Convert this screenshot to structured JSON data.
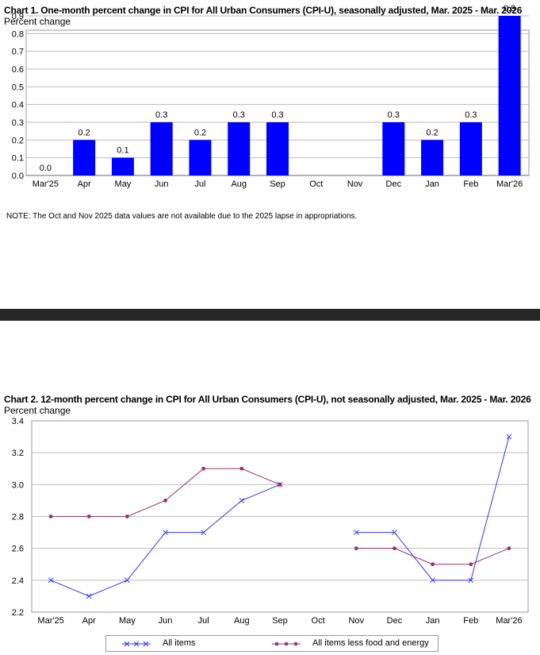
{
  "chart_data": [
    {
      "type": "bar",
      "title": "Chart 1. One-month percent change in CPI for All Urban Consumers (CPI-U), seasonally adjusted, Mar. 2025 - Mar. 2026",
      "ylabel": "Percent change",
      "categories": [
        "Mar'25",
        "Apr",
        "May",
        "Jun",
        "Jul",
        "Aug",
        "Sep",
        "Oct",
        "Nov",
        "Dec",
        "Jan",
        "Feb",
        "Mar'26"
      ],
      "values": [
        0.0,
        0.2,
        0.1,
        0.3,
        0.2,
        0.3,
        0.3,
        null,
        null,
        0.3,
        0.2,
        0.3,
        0.9
      ],
      "value_labels": [
        "0.0",
        "0.2",
        "0.1",
        "0.3",
        "0.2",
        "0.3",
        "0.3",
        null,
        null,
        "0.3",
        "0.2",
        "0.3",
        "0.9"
      ],
      "ylim": [
        0,
        0.9
      ],
      "yticks": [
        0.0,
        0.1,
        0.2,
        0.3,
        0.4,
        0.5,
        0.6,
        0.7,
        0.8,
        0.9
      ],
      "ytick_labels": [
        "0.0",
        "0.1",
        "0.2",
        "0.3",
        "0.4",
        "0.5",
        "0.6",
        "0.7",
        "0.8",
        "0.9"
      ],
      "grid": true,
      "bar_color": "#0000ff",
      "note": "NOTE: The Oct and Nov 2025 data values are not available due to the 2025 lapse in appropriations."
    },
    {
      "type": "line",
      "title": "Chart 2. 12-month percent change in CPI for All Urban Consumers (CPI-U), not seasonally adjusted, Mar. 2025 - Mar. 2026",
      "ylabel": "Percent change",
      "categories": [
        "Mar'25",
        "Apr",
        "May",
        "Jun",
        "Jul",
        "Aug",
        "Sep",
        "Oct",
        "Nov",
        "Dec",
        "Jan",
        "Feb",
        "Mar'26"
      ],
      "series": [
        {
          "name": "All items",
          "color": "#3333ff",
          "marker": "x",
          "values": [
            2.4,
            2.3,
            2.4,
            2.7,
            2.7,
            2.9,
            3.0,
            null,
            2.7,
            2.7,
            2.4,
            2.4,
            3.3
          ]
        },
        {
          "name": "All items less food and energy",
          "color": "#993366",
          "marker": "circle",
          "values": [
            2.8,
            2.8,
            2.8,
            2.9,
            3.1,
            3.1,
            3.0,
            null,
            2.6,
            2.6,
            2.5,
            2.5,
            2.6
          ]
        }
      ],
      "ylim": [
        2.2,
        3.4
      ],
      "yticks": [
        2.2,
        2.4,
        2.6,
        2.8,
        3.0,
        3.2,
        3.4
      ],
      "ytick_labels": [
        "2.2",
        "2.4",
        "2.6",
        "2.8",
        "3.0",
        "3.2",
        "3.4"
      ],
      "grid": true,
      "legend": "bottom"
    }
  ]
}
